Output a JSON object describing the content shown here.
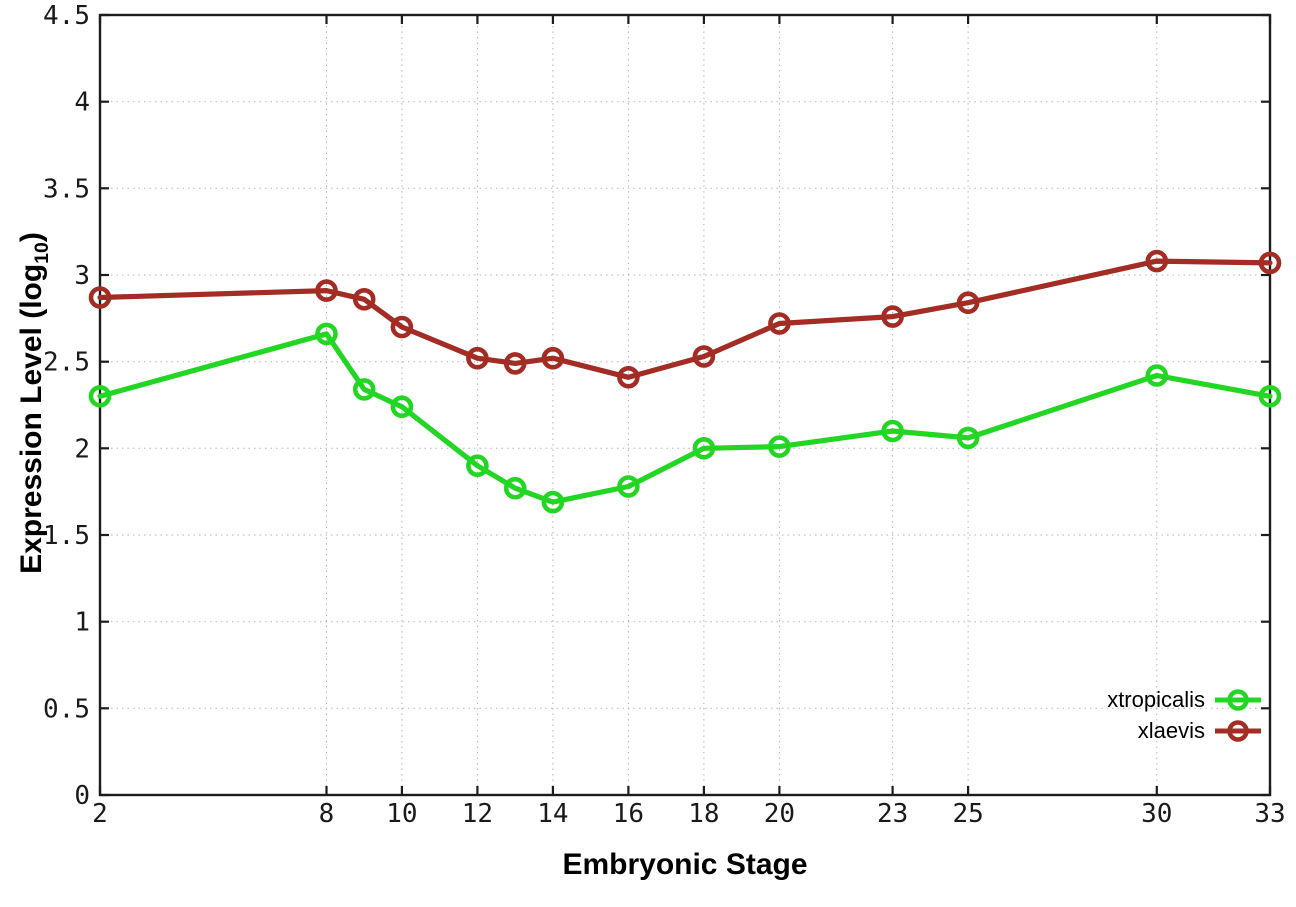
{
  "chart_data": {
    "type": "line",
    "title": "",
    "xlabel": "Embryonic Stage",
    "ylabel": "Expression Level (log10)",
    "ylabel_parts": {
      "prefix": "Expression Level (log",
      "subscript": "10",
      "suffix": ")"
    },
    "x": [
      2,
      8,
      9,
      10,
      12,
      13,
      14,
      16,
      18,
      20,
      23,
      25,
      30,
      33
    ],
    "xlim": [
      2,
      33
    ],
    "ylim": [
      0,
      4.5
    ],
    "xticks": [
      2,
      8,
      10,
      12,
      14,
      16,
      18,
      20,
      23,
      25,
      30,
      33
    ],
    "yticks": [
      0,
      0.5,
      1,
      1.5,
      2,
      2.5,
      3,
      3.5,
      4,
      4.5
    ],
    "grid": true,
    "legend_position": "bottom-right-inside",
    "marker": "open-circle",
    "series": [
      {
        "name": "xtropicalis",
        "color": "#24d624",
        "values": [
          2.3,
          2.66,
          2.34,
          2.24,
          1.9,
          1.77,
          1.69,
          1.78,
          2.0,
          2.01,
          2.1,
          2.06,
          2.42,
          2.3
        ]
      },
      {
        "name": "xlaevis",
        "color": "#a32c24",
        "values": [
          2.87,
          2.91,
          2.86,
          2.7,
          2.52,
          2.49,
          2.52,
          2.41,
          2.53,
          2.72,
          2.76,
          2.84,
          3.08,
          3.07
        ]
      }
    ],
    "colors": {
      "grid": "#b5b5b5",
      "axis": "#1c1c1c",
      "tick_label": "#1a1a1a",
      "background": "#ffffff"
    }
  }
}
